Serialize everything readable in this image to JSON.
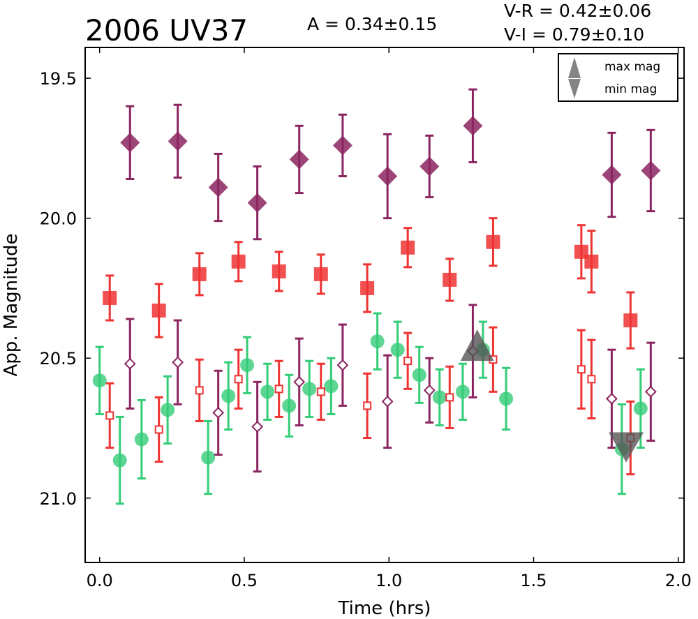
{
  "chart_data": {
    "type": "scatter",
    "title": "2006 UV37",
    "annotations": {
      "amplitude": "A  = 0.34±0.15",
      "v_minus_r": "V-R = 0.42±0.06",
      "v_minus_i": "V-I  = 0.79±0.10"
    },
    "xlabel": "Time (hrs)",
    "ylabel": "App. Magnitude",
    "xlim": [
      -0.05,
      2.02
    ],
    "ylim": [
      21.23,
      19.39
    ],
    "y_inverted": true,
    "xticks": [
      "0.0",
      "0.5",
      "1.0",
      "1.5",
      "2.0"
    ],
    "xtick_values": [
      0.0,
      0.5,
      1.0,
      1.5,
      2.0
    ],
    "yticks": [
      "19.5",
      "20.0",
      "20.5",
      "21.0"
    ],
    "ytick_values": [
      19.5,
      20.0,
      20.5,
      21.0
    ],
    "grid": false,
    "legend_position": "top-right",
    "legend": [
      {
        "label": "max mag",
        "marker": "triangle-up"
      },
      {
        "label": "min mag",
        "marker": "triangle-down"
      }
    ],
    "series": [
      {
        "marker": "diamond-filled",
        "color": "#8b2560",
        "points": [
          {
            "x": 0.105,
            "y": 19.73,
            "err": 0.13
          },
          {
            "x": 0.27,
            "y": 19.725,
            "err": 0.13
          },
          {
            "x": 0.41,
            "y": 19.89,
            "err": 0.12
          },
          {
            "x": 0.545,
            "y": 19.945,
            "err": 0.13
          },
          {
            "x": 0.69,
            "y": 19.79,
            "err": 0.12
          },
          {
            "x": 0.84,
            "y": 19.74,
            "err": 0.11
          },
          {
            "x": 0.995,
            "y": 19.85,
            "err": 0.15
          },
          {
            "x": 1.14,
            "y": 19.815,
            "err": 0.11
          },
          {
            "x": 1.29,
            "y": 19.67,
            "err": 0.13
          },
          {
            "x": 1.77,
            "y": 19.845,
            "err": 0.15
          },
          {
            "x": 1.905,
            "y": 19.83,
            "err": 0.145
          }
        ]
      },
      {
        "marker": "square-filled",
        "color": "#ee3333",
        "points": [
          {
            "x": 0.035,
            "y": 20.285,
            "err": 0.08
          },
          {
            "x": 0.205,
            "y": 20.33,
            "err": 0.095
          },
          {
            "x": 0.345,
            "y": 20.2,
            "err": 0.075
          },
          {
            "x": 0.48,
            "y": 20.155,
            "err": 0.07
          },
          {
            "x": 0.62,
            "y": 20.19,
            "err": 0.07
          },
          {
            "x": 0.765,
            "y": 20.2,
            "err": 0.07
          },
          {
            "x": 0.925,
            "y": 20.25,
            "err": 0.085
          },
          {
            "x": 1.065,
            "y": 20.105,
            "err": 0.07
          },
          {
            "x": 1.21,
            "y": 20.22,
            "err": 0.075
          },
          {
            "x": 1.36,
            "y": 20.085,
            "err": 0.085
          },
          {
            "x": 1.665,
            "y": 20.12,
            "err": 0.095
          },
          {
            "x": 1.7,
            "y": 20.155,
            "err": 0.11
          },
          {
            "x": 1.835,
            "y": 20.365,
            "err": 0.1
          }
        ]
      },
      {
        "marker": "circle-filled",
        "color": "#33cc77",
        "points": [
          {
            "x": 0.0,
            "y": 20.58,
            "err": 0.12
          },
          {
            "x": 0.07,
            "y": 20.865,
            "err": 0.155
          },
          {
            "x": 0.145,
            "y": 20.79,
            "err": 0.14
          },
          {
            "x": 0.235,
            "y": 20.685,
            "err": 0.12
          },
          {
            "x": 0.375,
            "y": 20.855,
            "err": 0.13
          },
          {
            "x": 0.445,
            "y": 20.635,
            "err": 0.12
          },
          {
            "x": 0.51,
            "y": 20.525,
            "err": 0.1
          },
          {
            "x": 0.58,
            "y": 20.62,
            "err": 0.1
          },
          {
            "x": 0.655,
            "y": 20.67,
            "err": 0.11
          },
          {
            "x": 0.725,
            "y": 20.61,
            "err": 0.1
          },
          {
            "x": 0.8,
            "y": 20.6,
            "err": 0.1
          },
          {
            "x": 0.96,
            "y": 20.44,
            "err": 0.1
          },
          {
            "x": 1.03,
            "y": 20.47,
            "err": 0.1
          },
          {
            "x": 1.105,
            "y": 20.56,
            "err": 0.1
          },
          {
            "x": 1.175,
            "y": 20.64,
            "err": 0.1
          },
          {
            "x": 1.255,
            "y": 20.62,
            "err": 0.1
          },
          {
            "x": 1.325,
            "y": 20.47,
            "err": 0.1
          },
          {
            "x": 1.405,
            "y": 20.645,
            "err": 0.11
          },
          {
            "x": 1.805,
            "y": 20.825,
            "err": 0.16
          },
          {
            "x": 1.87,
            "y": 20.68,
            "err": 0.14
          }
        ]
      },
      {
        "marker": "diamond-open",
        "color": "#8b2560",
        "points": [
          {
            "x": 0.105,
            "y": 20.52,
            "err": 0.16
          },
          {
            "x": 0.27,
            "y": 20.515,
            "err": 0.15
          },
          {
            "x": 0.41,
            "y": 20.695,
            "err": 0.15
          },
          {
            "x": 0.545,
            "y": 20.745,
            "err": 0.16
          },
          {
            "x": 0.69,
            "y": 20.585,
            "err": 0.155
          },
          {
            "x": 0.84,
            "y": 20.525,
            "err": 0.145
          },
          {
            "x": 0.995,
            "y": 20.655,
            "err": 0.165
          },
          {
            "x": 1.14,
            "y": 20.615,
            "err": 0.115
          },
          {
            "x": 1.29,
            "y": 20.475,
            "err": 0.165
          },
          {
            "x": 1.77,
            "y": 20.645,
            "err": 0.175
          },
          {
            "x": 1.905,
            "y": 20.62,
            "err": 0.175
          }
        ]
      },
      {
        "marker": "square-open",
        "color": "#ee3333",
        "points": [
          {
            "x": 0.035,
            "y": 20.705,
            "err": 0.115
          },
          {
            "x": 0.205,
            "y": 20.755,
            "err": 0.115
          },
          {
            "x": 0.345,
            "y": 20.615,
            "err": 0.11
          },
          {
            "x": 0.48,
            "y": 20.575,
            "err": 0.105
          },
          {
            "x": 0.62,
            "y": 20.61,
            "err": 0.1
          },
          {
            "x": 0.765,
            "y": 20.62,
            "err": 0.1
          },
          {
            "x": 0.925,
            "y": 20.67,
            "err": 0.115
          },
          {
            "x": 1.065,
            "y": 20.51,
            "err": 0.1
          },
          {
            "x": 1.21,
            "y": 20.64,
            "err": 0.11
          },
          {
            "x": 1.36,
            "y": 20.505,
            "err": 0.115
          },
          {
            "x": 1.665,
            "y": 20.54,
            "err": 0.14
          },
          {
            "x": 1.7,
            "y": 20.575,
            "err": 0.14
          },
          {
            "x": 1.835,
            "y": 20.785,
            "err": 0.13
          }
        ]
      }
    ],
    "extrema": [
      {
        "type": "max mag",
        "marker": "triangle-up",
        "x": 1.305,
        "y": 20.48
      },
      {
        "type": "min mag",
        "marker": "triangle-down",
        "x": 1.82,
        "y": 20.795
      }
    ]
  }
}
